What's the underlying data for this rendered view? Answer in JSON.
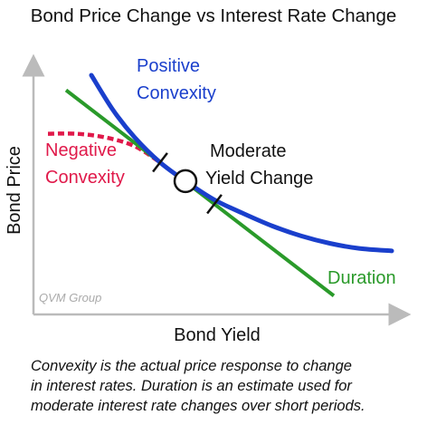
{
  "chart_data": {
    "type": "line",
    "title": "Bond Price Change vs Interest Rate Change",
    "xlabel": "Bond Yield",
    "ylabel": "Bond Price",
    "xlim": [
      0,
      10
    ],
    "ylim": [
      0,
      10
    ],
    "grid": false,
    "series": [
      {
        "name": "Positive Convexity",
        "color": "#1a3fcc",
        "x": [
          1.6,
          2.2,
          2.8,
          3.5,
          4.2,
          5.0,
          5.8,
          6.6,
          7.4,
          8.2,
          9.0,
          9.9
        ],
        "y": [
          9.6,
          8.2,
          7.1,
          6.1,
          5.35,
          4.6,
          4.05,
          3.55,
          3.15,
          2.85,
          2.65,
          2.55
        ]
      },
      {
        "name": "Duration",
        "color": "#2a9a2a",
        "x": [
          0.9,
          8.3
        ],
        "y": [
          9.0,
          0.75
        ]
      },
      {
        "name": "Negative Convexity",
        "color": "#e0194a",
        "x": [
          0.4,
          1.2,
          2.0,
          2.8,
          3.5
        ],
        "y": [
          7.25,
          7.25,
          7.1,
          6.75,
          6.1
        ]
      }
    ],
    "annotations": {
      "midpoint_label": [
        "Moderate",
        "Yield Change"
      ],
      "watermark": "QVM Group",
      "midpoint": {
        "x": 4.2,
        "y": 5.35
      },
      "tick_range": [
        3.5,
        5.0
      ]
    }
  },
  "caption": [
    "Convexity is the actual price response to change",
    "in interest rates.  Duration is an estimate used for",
    "moderate interest rate changes over short periods."
  ]
}
